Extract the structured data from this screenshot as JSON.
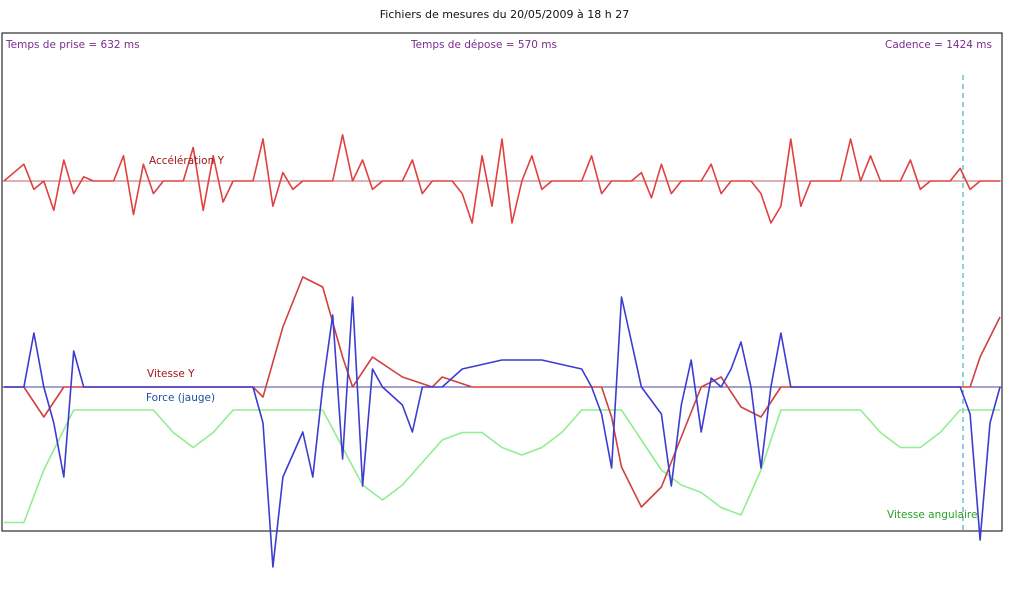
{
  "title": "Fichiers de mesures du 20/05/2009 à 18 h 27",
  "annotations": {
    "prise": "Temps de prise = 632 ms",
    "depose": "Temps de dépose = 570 ms",
    "cadence": "Cadence = 1424 ms"
  },
  "colors": {
    "annotation": "#7a2b8f",
    "acceleration": "#e04040",
    "vitesse": "#d04040",
    "force": "#3c3cd0",
    "angulaire": "#90ee90",
    "marker": "#20a0b0",
    "frame": "#000000"
  },
  "chart_data": {
    "type": "line",
    "title": "Fichiers de mesures du 20/05/2009 à 18 h 27",
    "xlabel": "",
    "ylabel": "",
    "grid": false,
    "series": [
      {
        "name": "Accélération Y",
        "baseline": 0,
        "points": [
          [
            0,
            0
          ],
          [
            2,
            4
          ],
          [
            3,
            -2
          ],
          [
            4,
            0
          ],
          [
            5,
            -7
          ],
          [
            6,
            5
          ],
          [
            7,
            -3
          ],
          [
            8,
            1
          ],
          [
            9,
            0
          ],
          [
            11,
            0
          ],
          [
            12,
            6
          ],
          [
            13,
            -8
          ],
          [
            14,
            4
          ],
          [
            15,
            -3
          ],
          [
            16,
            0
          ],
          [
            18,
            0
          ],
          [
            19,
            8
          ],
          [
            20,
            -7
          ],
          [
            21,
            6
          ],
          [
            22,
            -5
          ],
          [
            23,
            0
          ],
          [
            25,
            0
          ],
          [
            26,
            10
          ],
          [
            27,
            -6
          ],
          [
            28,
            2
          ],
          [
            29,
            -2
          ],
          [
            30,
            0
          ],
          [
            33,
            0
          ],
          [
            34,
            11
          ],
          [
            35,
            0
          ],
          [
            36,
            5
          ],
          [
            37,
            -2
          ],
          [
            38,
            0
          ],
          [
            40,
            0
          ],
          [
            41,
            5
          ],
          [
            42,
            -3
          ],
          [
            43,
            0
          ],
          [
            45,
            0
          ],
          [
            46,
            -3
          ],
          [
            47,
            -10
          ],
          [
            48,
            6
          ],
          [
            49,
            -6
          ],
          [
            50,
            10
          ],
          [
            51,
            -10
          ],
          [
            52,
            0
          ],
          [
            53,
            6
          ],
          [
            54,
            -2
          ],
          [
            55,
            0
          ],
          [
            58,
            0
          ],
          [
            59,
            6
          ],
          [
            60,
            -3
          ],
          [
            61,
            0
          ],
          [
            63,
            0
          ],
          [
            64,
            2
          ],
          [
            65,
            -4
          ],
          [
            66,
            4
          ],
          [
            67,
            -3
          ],
          [
            68,
            0
          ],
          [
            70,
            0
          ],
          [
            71,
            4
          ],
          [
            72,
            -3
          ],
          [
            73,
            0
          ],
          [
            75,
            0
          ],
          [
            76,
            -3
          ],
          [
            77,
            -10
          ],
          [
            78,
            -6
          ],
          [
            79,
            10
          ],
          [
            80,
            -6
          ],
          [
            81,
            0
          ],
          [
            84,
            0
          ],
          [
            85,
            10
          ],
          [
            86,
            0
          ],
          [
            87,
            6
          ],
          [
            88,
            0
          ],
          [
            90,
            0
          ],
          [
            91,
            5
          ],
          [
            92,
            -2
          ],
          [
            93,
            0
          ],
          [
            95,
            0
          ],
          [
            96,
            3
          ],
          [
            97,
            -2
          ],
          [
            98,
            0
          ],
          [
            100,
            0
          ]
        ],
        "label": "Accélération Y"
      },
      {
        "name": "Vitesse Y",
        "baseline": 0,
        "points": [
          [
            0,
            0
          ],
          [
            2,
            0
          ],
          [
            4,
            -3
          ],
          [
            6,
            0
          ],
          [
            8,
            0
          ],
          [
            25,
            0
          ],
          [
            26,
            -1
          ],
          [
            28,
            6
          ],
          [
            30,
            11
          ],
          [
            32,
            10
          ],
          [
            34,
            3
          ],
          [
            35,
            0
          ],
          [
            37,
            3
          ],
          [
            40,
            1
          ],
          [
            43,
            0
          ],
          [
            44,
            1
          ],
          [
            47,
            0
          ],
          [
            60,
            0
          ],
          [
            61,
            -3
          ],
          [
            62,
            -8
          ],
          [
            64,
            -12
          ],
          [
            66,
            -10
          ],
          [
            68,
            -5
          ],
          [
            70,
            0
          ],
          [
            72,
            1
          ],
          [
            74,
            -2
          ],
          [
            76,
            -3
          ],
          [
            78,
            0
          ],
          [
            80,
            0
          ],
          [
            97,
            0
          ],
          [
            98,
            3
          ],
          [
            100,
            7
          ]
        ],
        "label": "Vitesse Y"
      },
      {
        "name": "Force (jauge)",
        "baseline": 0,
        "points": [
          [
            0,
            0
          ],
          [
            2,
            0
          ],
          [
            3,
            6
          ],
          [
            4,
            0
          ],
          [
            5,
            -4
          ],
          [
            6,
            -10
          ],
          [
            7,
            4
          ],
          [
            8,
            0
          ],
          [
            25,
            0
          ],
          [
            26,
            -4
          ],
          [
            27,
            -20
          ],
          [
            28,
            -10
          ],
          [
            30,
            -5
          ],
          [
            31,
            -10
          ],
          [
            32,
            0
          ],
          [
            33,
            8
          ],
          [
            34,
            -8
          ],
          [
            35,
            10
          ],
          [
            36,
            -11
          ],
          [
            37,
            2
          ],
          [
            38,
            0
          ],
          [
            40,
            -2
          ],
          [
            41,
            -5
          ],
          [
            42,
            0
          ],
          [
            44,
            0
          ],
          [
            46,
            2
          ],
          [
            50,
            3
          ],
          [
            54,
            3
          ],
          [
            58,
            2
          ],
          [
            59,
            0
          ],
          [
            60,
            -3
          ],
          [
            61,
            -9
          ],
          [
            62,
            10
          ],
          [
            63,
            5
          ],
          [
            64,
            0
          ],
          [
            66,
            -3
          ],
          [
            67,
            -11
          ],
          [
            68,
            -2
          ],
          [
            69,
            3
          ],
          [
            70,
            -5
          ],
          [
            71,
            1
          ],
          [
            72,
            0
          ],
          [
            73,
            2
          ],
          [
            74,
            5
          ],
          [
            75,
            0
          ],
          [
            76,
            -9
          ],
          [
            77,
            0
          ],
          [
            78,
            6
          ],
          [
            79,
            0
          ],
          [
            80,
            0
          ],
          [
            96,
            0
          ],
          [
            97,
            -3
          ],
          [
            98,
            -17
          ],
          [
            99,
            -4
          ],
          [
            100,
            0
          ]
        ],
        "label": "Force (jauge)"
      },
      {
        "name": "Vitesse angulaire",
        "baseline": 0,
        "points": [
          [
            0,
            -7
          ],
          [
            2,
            -7
          ],
          [
            4,
            0
          ],
          [
            7,
            8
          ],
          [
            15,
            8
          ],
          [
            17,
            5
          ],
          [
            19,
            3
          ],
          [
            21,
            5
          ],
          [
            23,
            8
          ],
          [
            30,
            8
          ],
          [
            32,
            8
          ],
          [
            34,
            3
          ],
          [
            36,
            -2
          ],
          [
            38,
            -4
          ],
          [
            40,
            -2
          ],
          [
            42,
            1
          ],
          [
            44,
            4
          ],
          [
            46,
            5
          ],
          [
            48,
            5
          ],
          [
            50,
            3
          ],
          [
            52,
            2
          ],
          [
            54,
            3
          ],
          [
            56,
            5
          ],
          [
            58,
            8
          ],
          [
            62,
            8
          ],
          [
            64,
            4
          ],
          [
            66,
            0
          ],
          [
            68,
            -2
          ],
          [
            70,
            -3
          ],
          [
            72,
            -5
          ],
          [
            74,
            -6
          ],
          [
            76,
            0
          ],
          [
            78,
            8
          ],
          [
            86,
            8
          ],
          [
            88,
            5
          ],
          [
            90,
            3
          ],
          [
            92,
            3
          ],
          [
            94,
            5
          ],
          [
            96,
            8
          ],
          [
            100,
            8
          ]
        ],
        "label": "Vitesse angulaire"
      }
    ],
    "marker_x": 96
  }
}
